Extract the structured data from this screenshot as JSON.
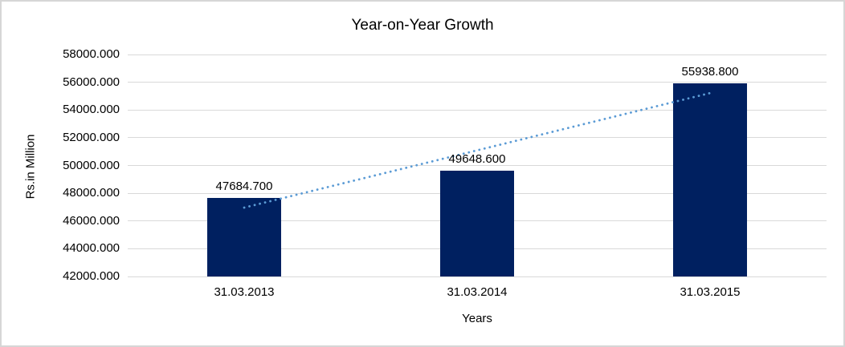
{
  "chart_data": {
    "type": "bar",
    "title": "Year-on-Year Growth",
    "xlabel": "Years",
    "ylabel": "Rs.in Million",
    "categories": [
      "31.03.2013",
      "31.03.2014",
      "31.03.2015"
    ],
    "values": [
      47684.7,
      49648.6,
      55938.8
    ],
    "data_labels": [
      "47684.700",
      "49648.600",
      "55938.800"
    ],
    "ylim": [
      42000,
      58000
    ],
    "ytick_step": 2000,
    "ytick_labels": [
      "42000.000",
      "44000.000",
      "46000.000",
      "48000.000",
      "50000.000",
      "52000.000",
      "54000.000",
      "56000.000",
      "58000.000"
    ],
    "grid": true,
    "legend": false,
    "colors": {
      "bar": "#002060",
      "trendline": "#5B9BD5",
      "gridline": "#d9d9d9",
      "text": "#000000",
      "frame_border": "#d6d6d6",
      "background": "#ffffff"
    },
    "trendline": {
      "type": "linear",
      "line_style": "dotted",
      "start_value": 46963.6,
      "end_value": 55217.8
    }
  }
}
